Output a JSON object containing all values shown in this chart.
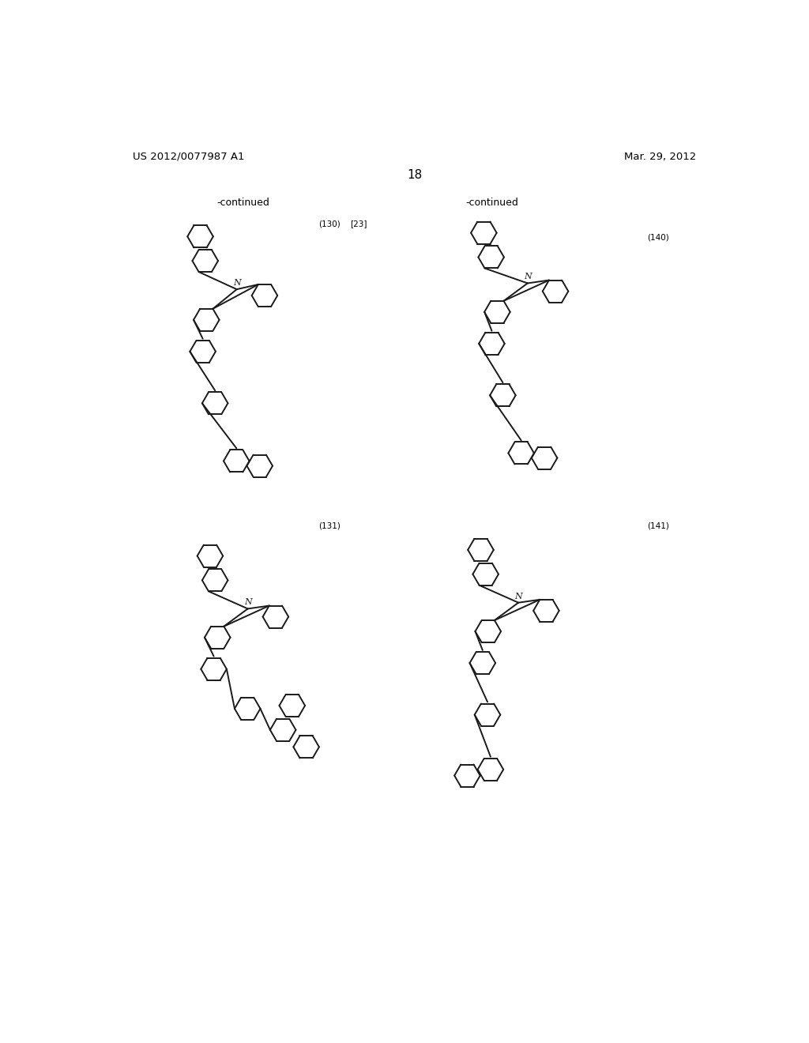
{
  "page_header_left": "US 2012/0077987 A1",
  "page_header_right": "Mar. 29, 2012",
  "page_number": "18",
  "background_color": "#ffffff",
  "text_color": "#000000",
  "top_left_continued": "-continued",
  "top_right_continued": "-continued",
  "label_130": "(130)",
  "label_23": "[23]",
  "label_140": "(140)",
  "label_131": "(131)",
  "label_141": "(141)"
}
